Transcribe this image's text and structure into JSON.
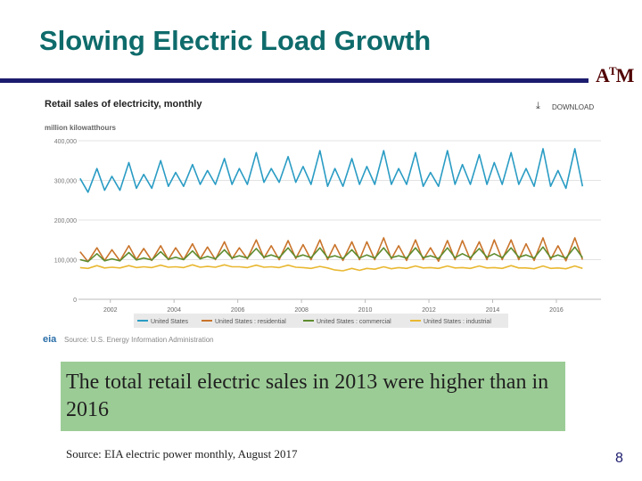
{
  "slide": {
    "title": "Slowing Electric Load Growth",
    "caption": "The total retail electric sales in 2013 were higher than in 2016",
    "source_note": "Source: EIA electric power monthly, August 2017",
    "page_number": "8",
    "logo_text": "ATM"
  },
  "colors": {
    "title": "#0f6b6b",
    "rule": "#1c1c6e",
    "caption_bg": "#9ccc96",
    "logo": "#500000"
  },
  "chart_data": {
    "type": "line",
    "title": "Retail sales of electricity, monthly",
    "download_label": "DOWNLOAD",
    "ylabel": "million kilowatthours",
    "source": "Source: U.S. Energy Information Administration",
    "source_logo": "eia",
    "xlim": [
      2001,
      2017.4
    ],
    "ylim": [
      0,
      400000
    ],
    "yticks": [
      0,
      100000,
      200000,
      300000,
      400000
    ],
    "ytick_labels": [
      "0",
      "100,000",
      "200,000",
      "300,000",
      "400,000"
    ],
    "xticks": [
      2002,
      2004,
      2006,
      2008,
      2010,
      2012,
      2014,
      2016
    ],
    "xtick_labels": [
      "2002",
      "2004",
      "2006",
      "2008",
      "2010",
      "2012",
      "2014",
      "2016"
    ],
    "grid": true,
    "legend_position": "bottom",
    "series": [
      {
        "name": "United States",
        "color": "#2a9cc4",
        "summer_peaks": [
          330000,
          345000,
          350000,
          340000,
          355000,
          370000,
          360000,
          375000,
          355000,
          375000,
          370000,
          375000,
          365000,
          370000,
          380000,
          380000
        ],
        "winter_highs": [
          305000,
          310000,
          315000,
          320000,
          325000,
          330000,
          330000,
          335000,
          330000,
          335000,
          330000,
          320000,
          340000,
          345000,
          330000,
          325000
        ],
        "spring_troughs": [
          270000,
          275000,
          280000,
          285000,
          290000,
          290000,
          295000,
          290000,
          285000,
          290000,
          290000,
          285000,
          290000,
          290000,
          285000,
          280000
        ],
        "fall_troughs": [
          275000,
          280000,
          285000,
          290000,
          290000,
          295000,
          295000,
          285000,
          290000,
          290000,
          285000,
          290000,
          290000,
          290000,
          285000,
          285000
        ]
      },
      {
        "name": "United States : residential",
        "color": "#c9742b",
        "summer_peaks": [
          130000,
          135000,
          135000,
          140000,
          145000,
          150000,
          148000,
          150000,
          145000,
          155000,
          150000,
          148000,
          145000,
          150000,
          155000,
          155000
        ],
        "winter_highs": [
          120000,
          125000,
          128000,
          130000,
          132000,
          130000,
          135000,
          138000,
          138000,
          145000,
          135000,
          130000,
          148000,
          150000,
          140000,
          135000
        ],
        "spring_troughs": [
          95000,
          97000,
          98000,
          100000,
          100000,
          102000,
          100000,
          100000,
          98000,
          100000,
          98000,
          96000,
          100000,
          100000,
          98000,
          97000
        ],
        "fall_troughs": [
          98000,
          100000,
          100000,
          102000,
          102000,
          104000,
          103000,
          100000,
          100000,
          102000,
          100000,
          100000,
          100000,
          100000,
          100000,
          100000
        ]
      },
      {
        "name": "United States : commercial",
        "color": "#5e8c2f",
        "summer_peaks": [
          115000,
          118000,
          120000,
          122000,
          125000,
          128000,
          130000,
          130000,
          125000,
          130000,
          130000,
          130000,
          128000,
          130000,
          132000,
          132000
        ],
        "winter_highs": [
          100000,
          102000,
          104000,
          106000,
          108000,
          110000,
          112000,
          112000,
          110000,
          112000,
          110000,
          110000,
          115000,
          115000,
          112000,
          112000
        ],
        "spring_troughs": [
          95000,
          97000,
          99000,
          100000,
          102000,
          104000,
          105000,
          105000,
          103000,
          104000,
          104000,
          103000,
          105000,
          105000,
          104000,
          104000
        ],
        "fall_troughs": [
          97000,
          99000,
          101000,
          102000,
          104000,
          106000,
          106000,
          105000,
          104000,
          105000,
          105000,
          105000,
          106000,
          106000,
          105000,
          105000
        ]
      },
      {
        "name": "United States : industrial",
        "color": "#e9b832",
        "summer_peaks": [
          85000,
          85000,
          86000,
          87000,
          87000,
          86000,
          86000,
          83000,
          78000,
          82000,
          84000,
          84000,
          84000,
          85000,
          84000,
          84000
        ],
        "winter_highs": [
          80000,
          81000,
          82000,
          82000,
          83000,
          82000,
          82000,
          80000,
          74000,
          78000,
          80000,
          80000,
          80000,
          80000,
          79000,
          79000
        ],
        "spring_troughs": [
          78000,
          79000,
          80000,
          80000,
          81000,
          80000,
          80000,
          78000,
          72000,
          76000,
          78000,
          78000,
          78000,
          78000,
          77000,
          77000
        ],
        "fall_troughs": [
          79000,
          80000,
          81000,
          81000,
          82000,
          81000,
          81000,
          79000,
          73000,
          77000,
          79000,
          79000,
          79000,
          79000,
          78000,
          78000
        ]
      }
    ]
  }
}
